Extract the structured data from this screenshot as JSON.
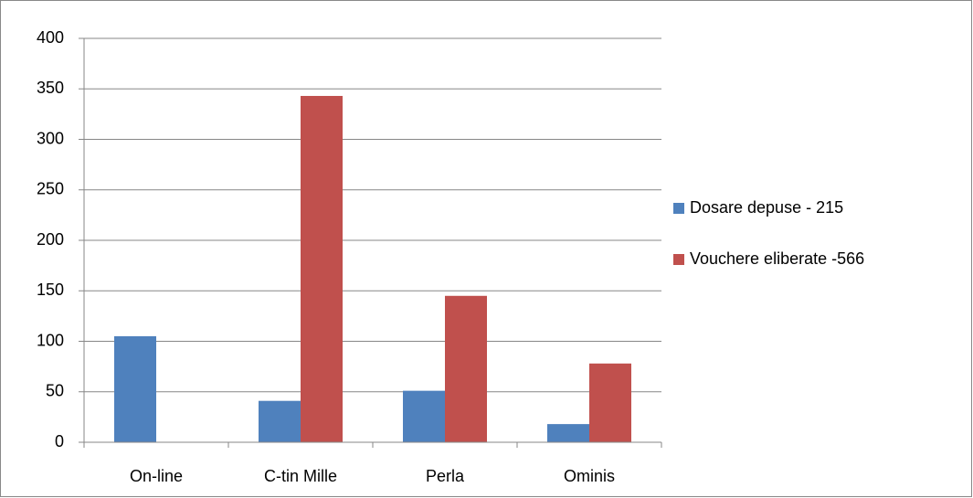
{
  "chart_data": {
    "type": "bar",
    "categories": [
      "On-line",
      "C-tin Mille",
      "Perla",
      "Ominis"
    ],
    "series": [
      {
        "name": "Dosare depuse - 215",
        "color": "#4f81bd",
        "values": [
          105,
          41,
          51,
          18
        ]
      },
      {
        "name": "Vouchere eliberate -566",
        "color": "#c0504d",
        "values": [
          0,
          343,
          145,
          78
        ]
      }
    ],
    "ylim": [
      0,
      400
    ],
    "yticks": [
      0,
      50,
      100,
      150,
      200,
      250,
      300,
      350,
      400
    ],
    "grid": true,
    "legend": "right"
  }
}
